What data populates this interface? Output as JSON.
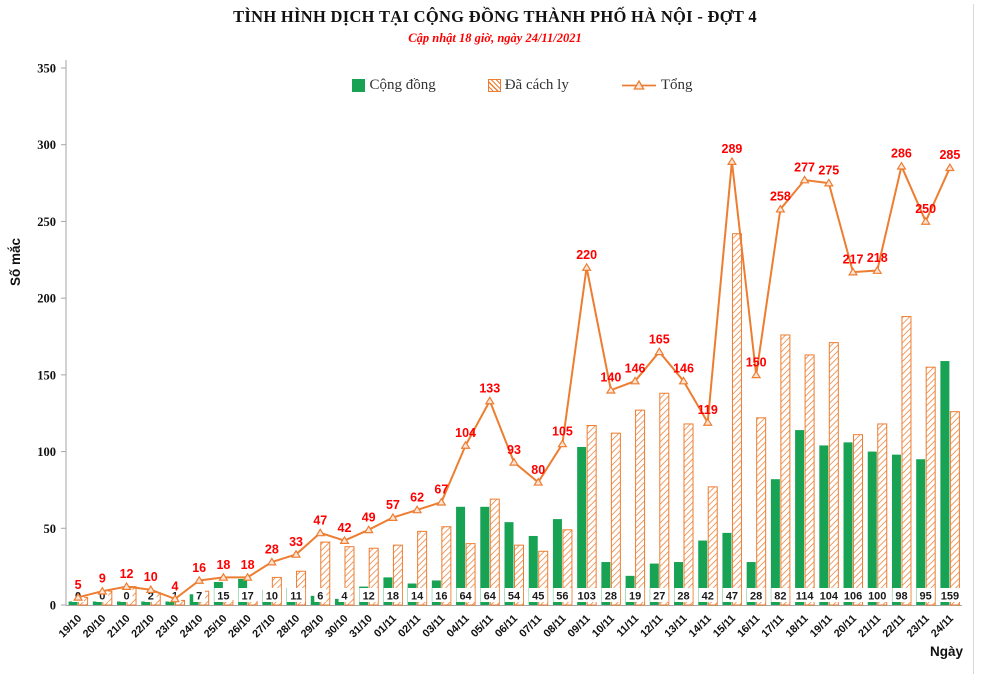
{
  "header": {
    "title": "TÌNH HÌNH DỊCH TẠI CỘNG ĐỒNG THÀNH PHỐ HÀ NỘI - ĐỢT 4",
    "subtitle": "Cập nhật 18 giờ, ngày 24/11/2021"
  },
  "legend": {
    "items": [
      {
        "label": "Cộng đồng",
        "swatch": "green-solid"
      },
      {
        "label": "Đã cách ly",
        "swatch": "orange-hatched"
      },
      {
        "label": "Tổng",
        "swatch": "orange-line-triangle-marker"
      }
    ]
  },
  "axes": {
    "y_label": "Số mắc",
    "x_label": "Ngày",
    "y_ticks": [
      0,
      50,
      100,
      150,
      200,
      250,
      300,
      350
    ]
  },
  "colors": {
    "green": "#17A353",
    "orange": "#ED7D31",
    "marker_fill": "#FBE5D6",
    "red_label": "#FF0000",
    "axis": "#A6A6A6",
    "right_border": "#D9D9D9"
  },
  "chart_data": {
    "type": "combo (bar + line)",
    "title": "TÌNH HÌNH DỊCH TẠI CỘNG ĐỒNG THÀNH PHỐ HÀ NỘI - ĐỢT 4",
    "subtitle": "Cập nhật 18 giờ, ngày 24/11/2021",
    "xlabel": "Ngày",
    "ylabel": "Số mắc",
    "ylim": [
      0,
      350
    ],
    "grid": false,
    "legend_position": "top",
    "categories": [
      "19/10",
      "20/10",
      "21/10",
      "22/10",
      "23/10",
      "24/10",
      "25/10",
      "26/10",
      "27/10",
      "28/10",
      "29/10",
      "30/10",
      "31/10",
      "01/11",
      "02/11",
      "03/11",
      "04/11",
      "05/11",
      "06/11",
      "07/11",
      "08/11",
      "09/11",
      "10/11",
      "11/11",
      "12/11",
      "13/11",
      "14/11",
      "15/11",
      "16/11",
      "17/11",
      "18/11",
      "19/11",
      "20/11",
      "21/11",
      "22/11",
      "23/11",
      "24/11"
    ],
    "series": [
      {
        "name": "Cộng đồng",
        "type": "bar",
        "style": "solid-green",
        "labels_visible": true,
        "values": [
          0,
          0,
          0,
          2,
          1,
          7,
          15,
          17,
          10,
          11,
          6,
          4,
          12,
          18,
          14,
          16,
          64,
          64,
          54,
          45,
          56,
          103,
          28,
          19,
          27,
          28,
          42,
          47,
          28,
          82,
          114,
          104,
          106,
          100,
          98,
          95,
          159
        ]
      },
      {
        "name": "Đã cách ly",
        "type": "bar",
        "style": "orange-hatched",
        "labels_visible": false,
        "values": [
          5,
          9,
          12,
          8,
          3,
          9,
          3,
          1,
          18,
          22,
          41,
          38,
          37,
          39,
          48,
          51,
          40,
          69,
          39,
          35,
          49,
          117,
          112,
          127,
          138,
          118,
          77,
          242,
          122,
          176,
          163,
          171,
          111,
          118,
          188,
          155,
          126
        ]
      },
      {
        "name": "Tổng",
        "type": "line",
        "style": "orange-line-open-triangle-markers",
        "labels_visible": true,
        "values": [
          5,
          9,
          12,
          10,
          4,
          16,
          18,
          18,
          28,
          33,
          47,
          42,
          49,
          57,
          62,
          67,
          104,
          133,
          93,
          80,
          105,
          220,
          140,
          146,
          165,
          146,
          119,
          289,
          150,
          258,
          277,
          275,
          217,
          218,
          286,
          250,
          285
        ]
      }
    ]
  }
}
